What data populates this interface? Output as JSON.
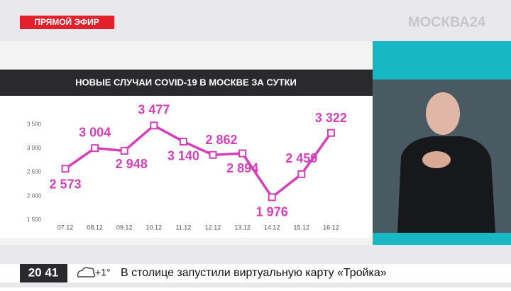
{
  "live_badge": "ПРЯМОЙ ЭФИР",
  "channel_logo": "МОСКВА24",
  "chart_data": {
    "type": "line",
    "title": "НОВЫЕ СЛУЧАИ COVID-19 В МОСКВЕ ЗА СУТКИ",
    "categories": [
      "07.12",
      "08.12",
      "09.12",
      "10.12",
      "11.12",
      "12.12",
      "13.12",
      "14.12",
      "15.12",
      "16.12"
    ],
    "values": [
      2573,
      3004,
      2948,
      3477,
      3140,
      2862,
      2894,
      1976,
      2459,
      3322
    ],
    "value_labels": [
      "2 573",
      "3 004",
      "2 948",
      "3 477",
      "3 140",
      "2 862",
      "2 894",
      "1 976",
      "2 459",
      "3 322"
    ],
    "color": "#d43fba",
    "ylim": [
      1380,
      3950
    ],
    "yticks": [
      {
        "value": 1500,
        "label": "1 500"
      },
      {
        "value": 2000,
        "label": "2 000"
      },
      {
        "value": 2500,
        "label": "2 500"
      },
      {
        "value": 3000,
        "label": "3 000"
      },
      {
        "value": 3500,
        "label": "3 500"
      }
    ],
    "grid": false
  },
  "ticker": {
    "time": "20 41",
    "temperature": "+1°",
    "headline": "В столице запустили виртуальную карту «Тройка»"
  }
}
